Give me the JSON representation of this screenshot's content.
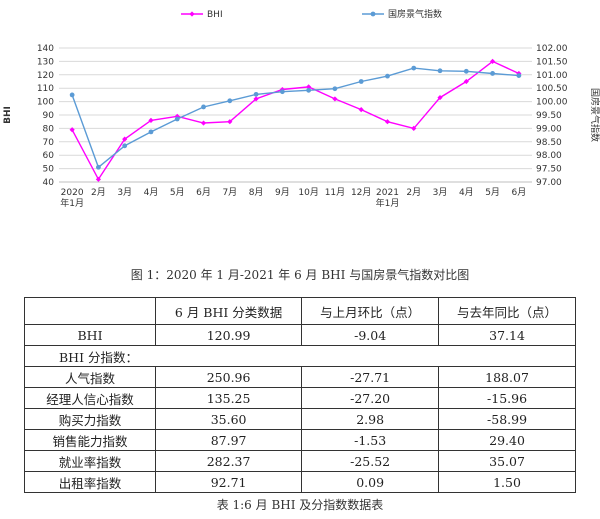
{
  "chart_data": {
    "type": "line",
    "categories": [
      "2020\n年1月",
      "2月",
      "3月",
      "4月",
      "5月",
      "6月",
      "7月",
      "8月",
      "9月",
      "10月",
      "11月",
      "12月",
      "2021\n年1月",
      "2月",
      "3月",
      "4月",
      "5月",
      "6月"
    ],
    "series": [
      {
        "name": "BHI",
        "axis": "left",
        "color": "#ff00ff",
        "values": [
          79,
          42,
          72,
          86,
          89,
          84,
          85,
          102,
          109,
          111,
          102,
          94,
          85,
          80,
          103,
          115,
          130,
          121
        ]
      },
      {
        "name": "国房景气指数",
        "axis": "right",
        "color": "#5b9bd5",
        "values": [
          100.25,
          97.55,
          98.35,
          98.87,
          99.35,
          99.8,
          100.03,
          100.27,
          100.37,
          100.42,
          100.48,
          100.75,
          100.95,
          101.25,
          101.15,
          101.13,
          101.05,
          100.97
        ]
      }
    ],
    "ylabel": "BHI",
    "y2label": "国房景气指数",
    "ylim": [
      40,
      140
    ],
    "yticks": [
      40,
      50,
      60,
      70,
      80,
      90,
      100,
      110,
      120,
      130,
      140
    ],
    "y2lim": [
      97.0,
      102.0
    ],
    "y2ticks": [
      "97.00",
      "97.50",
      "98.00",
      "98.50",
      "99.00",
      "99.50",
      "100.00",
      "100.50",
      "101.00",
      "101.50",
      "102.00"
    ],
    "grid": true,
    "legend": "top"
  },
  "figure_caption": "图 1：2020 年 1 月-2021 年 6 月 BHI 与国房景气指数对比图",
  "table": {
    "headers": [
      "",
      "6 月 BHI 分类数据",
      "与上月环比（点）",
      "与去年同比（点）"
    ],
    "rows": [
      {
        "label": "BHI",
        "v1": "120.99",
        "v2": "-9.04",
        "v3": "37.14"
      },
      {
        "section": "BHI 分指数："
      },
      {
        "label": "人气指数",
        "v1": "250.96",
        "v2": "-27.71",
        "v3": "188.07"
      },
      {
        "label": "经理人信心指数",
        "v1": "135.25",
        "v2": "-27.20",
        "v3": "-15.96"
      },
      {
        "label": "购买力指数",
        "v1": "35.60",
        "v2": "2.98",
        "v3": "-58.99"
      },
      {
        "label": "销售能力指数",
        "v1": "87.97",
        "v2": "-1.53",
        "v3": "29.40"
      },
      {
        "label": "就业率指数",
        "v1": "282.37",
        "v2": "-25.52",
        "v3": "35.07"
      },
      {
        "label": "出租率指数",
        "v1": "92.71",
        "v2": "0.09",
        "v3": "1.50"
      }
    ]
  },
  "table_caption": "表 1:6 月 BHI 及分指数数据表"
}
